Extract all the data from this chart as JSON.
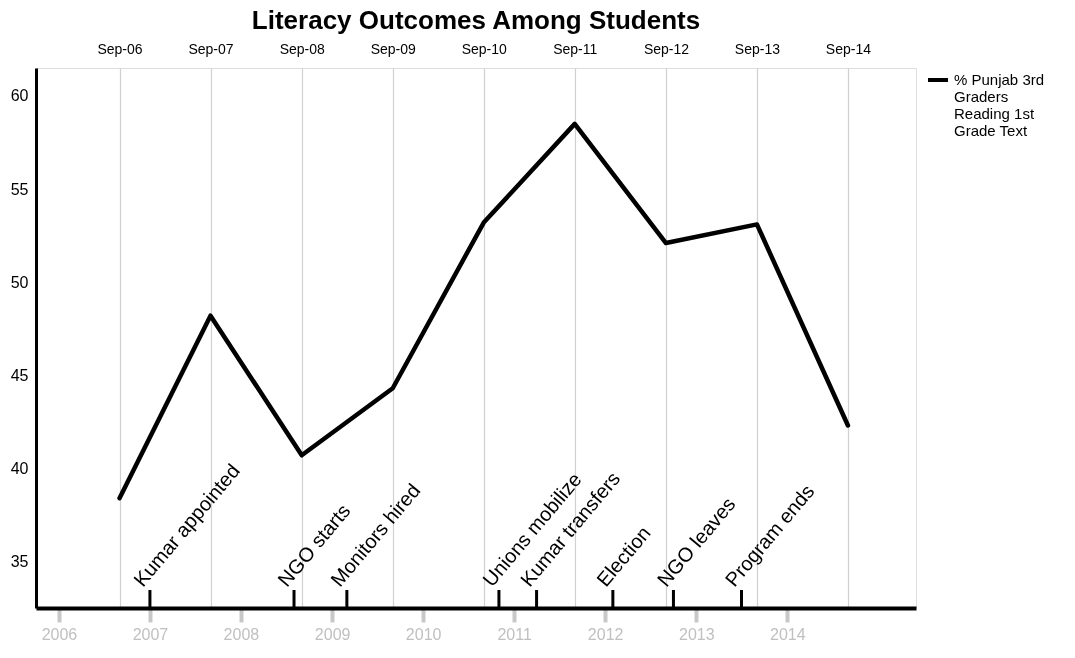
{
  "chart_data": {
    "type": "line",
    "title": "Literacy Outcomes Among Students",
    "x": [
      "2006-09",
      "2007-09",
      "2008-09",
      "2009-09",
      "2010-09",
      "2011-09",
      "2012-09",
      "2013-09",
      "2014-09"
    ],
    "series": [
      {
        "name": "% Punjab 3rd  Graders Reading 1st Grade Text",
        "color": "#000000",
        "values": [
          38.4,
          48.2,
          40.7,
          44.3,
          53.2,
          58.5,
          52.1,
          53.1,
          42.3
        ]
      }
    ],
    "xlim": [
      "2005-10",
      "2015-06"
    ],
    "xticks": [
      "2006",
      "2007",
      "2008",
      "2009",
      "2010",
      "2011",
      "2012",
      "2013",
      "2014"
    ],
    "x2lim": [
      "2005-10",
      "2015-06"
    ],
    "x2ticks": [
      {
        "value": "2006-09",
        "label": "Sep-06"
      },
      {
        "value": "2007-09",
        "label": "Sep-07"
      },
      {
        "value": "2008-09",
        "label": "Sep-08"
      },
      {
        "value": "2009-09",
        "label": "Sep-09"
      },
      {
        "value": "2010-09",
        "label": "Sep-10"
      },
      {
        "value": "2011-09",
        "label": "Sep-11"
      },
      {
        "value": "2012-09",
        "label": "Sep-12"
      },
      {
        "value": "2013-09",
        "label": "Sep-13"
      },
      {
        "value": "2014-09",
        "label": "Sep-14"
      }
    ],
    "ylim": [
      32.5,
      61.5
    ],
    "yticks": [
      35,
      40,
      45,
      50,
      55,
      60
    ],
    "grid": "x",
    "legend": "right",
    "ref_lines": [
      {
        "axis": "x",
        "value": "2007-01",
        "label": "Kumar appointed"
      },
      {
        "axis": "x",
        "value": "2008-08",
        "label": "NGO starts"
      },
      {
        "axis": "x",
        "value": "2009-03",
        "label": "Monitors hired"
      },
      {
        "axis": "x",
        "value": "2010-11",
        "label": "Unions mobilize"
      },
      {
        "axis": "x",
        "value": "2011-04",
        "label": "Kumar transfers"
      },
      {
        "axis": "x",
        "value": "2012-02",
        "label": "Election"
      },
      {
        "axis": "x",
        "value": "2012-10",
        "label": "NGO leaves"
      },
      {
        "axis": "x",
        "value": "2013-07",
        "label": "Program ends"
      }
    ]
  }
}
